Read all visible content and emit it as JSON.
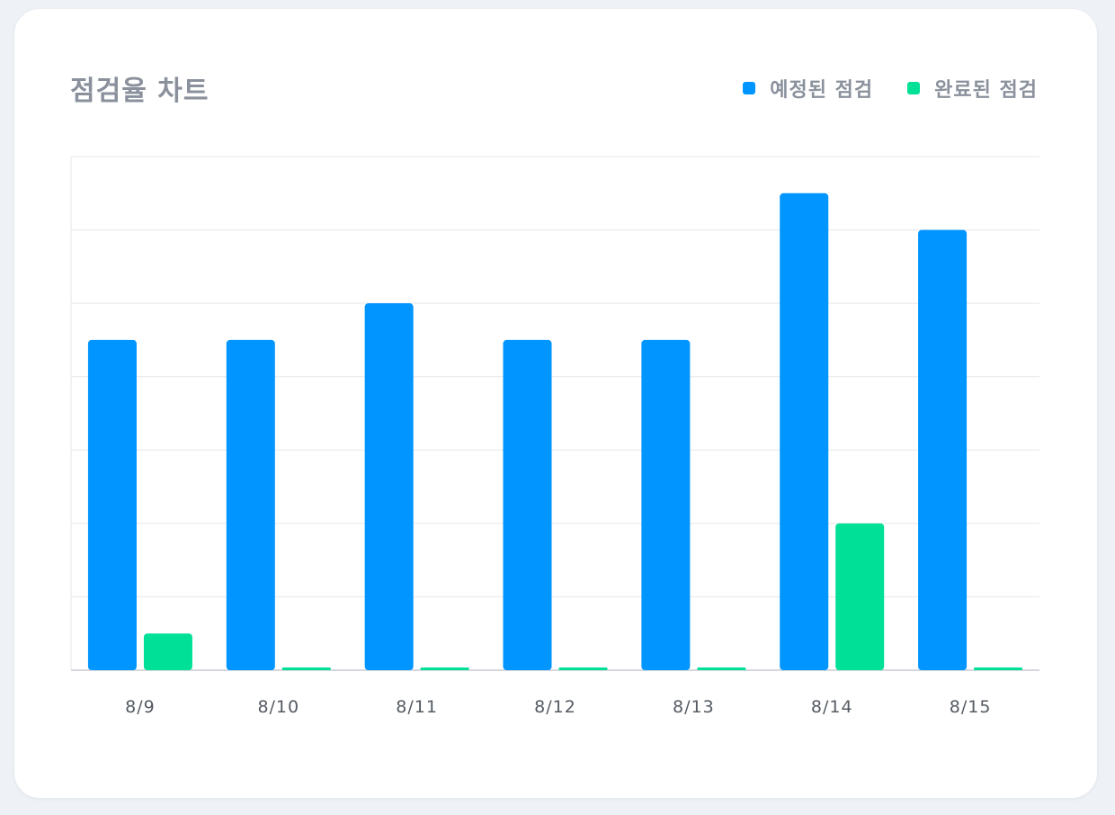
{
  "colors": {
    "scheduled": "#0095ff",
    "completed": "#00e096",
    "grid": "#e4e7eb",
    "axis": "#c8ccd2",
    "tick_text": "#555b63"
  },
  "legend": {
    "scheduled_label": "예정된 점검",
    "completed_label": "완료된 점검"
  },
  "chart_data": {
    "type": "bar",
    "title": "점검율 차트",
    "xlabel": "",
    "ylabel": "",
    "categories": [
      "8/9",
      "8/10",
      "8/11",
      "8/12",
      "8/13",
      "8/14",
      "8/15"
    ],
    "series": [
      {
        "name": "예정된 점검",
        "values": [
          9,
          9,
          10,
          9,
          9,
          13,
          12
        ]
      },
      {
        "name": "완료된 점검",
        "values": [
          1,
          0,
          0,
          0,
          0,
          4,
          0
        ]
      }
    ],
    "ylim": [
      0,
      14
    ],
    "grid": true,
    "legend_position": "top-right"
  }
}
